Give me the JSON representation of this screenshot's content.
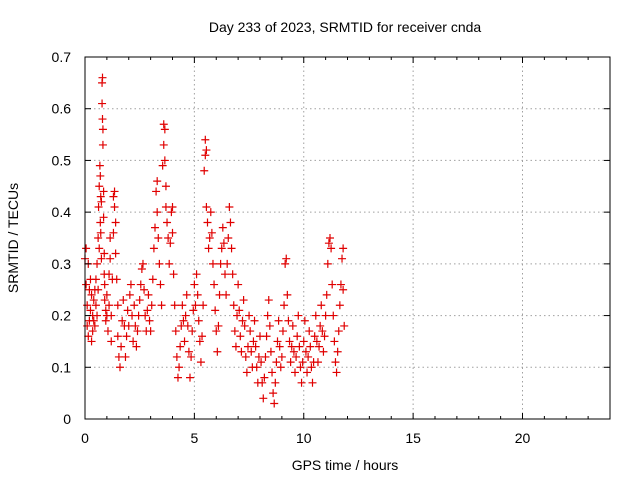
{
  "chart_data": {
    "type": "scatter",
    "title": "Day 233 of 2023, SRMTID for receiver cnda",
    "xlabel": "GPS time / hours",
    "ylabel": "SRMTID / TECUs",
    "xlim": [
      0,
      24
    ],
    "ylim": [
      0,
      0.7
    ],
    "xticks": [
      0,
      5,
      10,
      15,
      20
    ],
    "yticks": [
      0,
      0.1,
      0.2,
      0.3,
      0.4,
      0.5,
      0.6,
      0.7
    ],
    "xtick_labels": [
      "0",
      "5",
      "10",
      "15",
      "20"
    ],
    "ytick_labels": [
      "0",
      "0.1",
      "0.2",
      "0.3",
      "0.4",
      "0.5",
      "0.6",
      "0.7"
    ],
    "grid": true,
    "marker": "+",
    "color": "#e00000",
    "series": [
      {
        "name": "cnda",
        "points": [
          [
            0.0,
            0.31
          ],
          [
            0.05,
            0.33
          ],
          [
            0.05,
            0.26
          ],
          [
            0.1,
            0.18
          ],
          [
            0.1,
            0.22
          ],
          [
            0.15,
            0.3
          ],
          [
            0.15,
            0.16
          ],
          [
            0.2,
            0.25
          ],
          [
            0.2,
            0.19
          ],
          [
            0.25,
            0.27
          ],
          [
            0.25,
            0.21
          ],
          [
            0.3,
            0.15
          ],
          [
            0.3,
            0.24
          ],
          [
            0.35,
            0.2
          ],
          [
            0.35,
            0.17
          ],
          [
            0.4,
            0.23
          ],
          [
            0.4,
            0.19
          ],
          [
            0.45,
            0.25
          ],
          [
            0.45,
            0.18
          ],
          [
            0.5,
            0.22
          ],
          [
            0.5,
            0.27
          ],
          [
            0.55,
            0.2
          ],
          [
            0.55,
            0.3
          ],
          [
            0.6,
            0.25
          ],
          [
            0.6,
            0.35
          ],
          [
            0.62,
            0.41
          ],
          [
            0.65,
            0.33
          ],
          [
            0.65,
            0.45
          ],
          [
            0.68,
            0.49
          ],
          [
            0.7,
            0.47
          ],
          [
            0.7,
            0.38
          ],
          [
            0.72,
            0.43
          ],
          [
            0.72,
            0.36
          ],
          [
            0.75,
            0.42
          ],
          [
            0.75,
            0.31
          ],
          [
            0.78,
            0.61
          ],
          [
            0.78,
            0.65
          ],
          [
            0.8,
            0.66
          ],
          [
            0.8,
            0.58
          ],
          [
            0.82,
            0.56
          ],
          [
            0.82,
            0.53
          ],
          [
            0.85,
            0.44
          ],
          [
            0.85,
            0.39
          ],
          [
            0.88,
            0.32
          ],
          [
            0.88,
            0.28
          ],
          [
            0.9,
            0.26
          ],
          [
            0.9,
            0.23
          ],
          [
            0.95,
            0.21
          ],
          [
            0.95,
            0.19
          ],
          [
            1.0,
            0.24
          ],
          [
            1.0,
            0.2
          ],
          [
            1.05,
            0.17
          ],
          [
            1.1,
            0.22
          ],
          [
            1.1,
            0.28
          ],
          [
            1.15,
            0.35
          ],
          [
            1.15,
            0.31
          ],
          [
            1.2,
            0.2
          ],
          [
            1.2,
            0.15
          ],
          [
            1.25,
            0.27
          ],
          [
            1.3,
            0.36
          ],
          [
            1.3,
            0.43
          ],
          [
            1.35,
            0.44
          ],
          [
            1.35,
            0.41
          ],
          [
            1.4,
            0.38
          ],
          [
            1.4,
            0.32
          ],
          [
            1.45,
            0.27
          ],
          [
            1.5,
            0.22
          ],
          [
            1.5,
            0.16
          ],
          [
            1.55,
            0.12
          ],
          [
            1.6,
            0.1
          ],
          [
            1.65,
            0.14
          ],
          [
            1.7,
            0.19
          ],
          [
            1.75,
            0.23
          ],
          [
            1.8,
            0.18
          ],
          [
            1.85,
            0.12
          ],
          [
            1.9,
            0.16
          ],
          [
            1.95,
            0.21
          ],
          [
            2.0,
            0.18
          ],
          [
            2.05,
            0.24
          ],
          [
            2.1,
            0.26
          ],
          [
            2.15,
            0.2
          ],
          [
            2.2,
            0.15
          ],
          [
            2.25,
            0.22
          ],
          [
            2.3,
            0.18
          ],
          [
            2.35,
            0.14
          ],
          [
            2.4,
            0.17
          ],
          [
            2.45,
            0.2
          ],
          [
            2.5,
            0.23
          ],
          [
            2.55,
            0.26
          ],
          [
            2.6,
            0.29
          ],
          [
            2.65,
            0.3
          ],
          [
            2.7,
            0.25
          ],
          [
            2.75,
            0.2
          ],
          [
            2.8,
            0.17
          ],
          [
            2.85,
            0.21
          ],
          [
            2.9,
            0.24
          ],
          [
            2.95,
            0.19
          ],
          [
            3.0,
            0.17
          ],
          [
            3.05,
            0.22
          ],
          [
            3.1,
            0.27
          ],
          [
            3.15,
            0.33
          ],
          [
            3.2,
            0.37
          ],
          [
            3.25,
            0.44
          ],
          [
            3.3,
            0.46
          ],
          [
            3.3,
            0.4
          ],
          [
            3.35,
            0.35
          ],
          [
            3.4,
            0.3
          ],
          [
            3.45,
            0.26
          ],
          [
            3.5,
            0.22
          ],
          [
            3.55,
            0.49
          ],
          [
            3.6,
            0.53
          ],
          [
            3.6,
            0.57
          ],
          [
            3.65,
            0.56
          ],
          [
            3.65,
            0.5
          ],
          [
            3.7,
            0.45
          ],
          [
            3.7,
            0.41
          ],
          [
            3.75,
            0.38
          ],
          [
            3.8,
            0.35
          ],
          [
            3.85,
            0.3
          ],
          [
            3.9,
            0.34
          ],
          [
            3.95,
            0.4
          ],
          [
            4.0,
            0.41
          ],
          [
            4.0,
            0.36
          ],
          [
            4.05,
            0.28
          ],
          [
            4.1,
            0.22
          ],
          [
            4.15,
            0.17
          ],
          [
            4.2,
            0.12
          ],
          [
            4.25,
            0.08
          ],
          [
            4.3,
            0.1
          ],
          [
            4.35,
            0.14
          ],
          [
            4.4,
            0.18
          ],
          [
            4.45,
            0.22
          ],
          [
            4.5,
            0.19
          ],
          [
            4.55,
            0.15
          ],
          [
            4.6,
            0.2
          ],
          [
            4.65,
            0.24
          ],
          [
            4.7,
            0.18
          ],
          [
            4.75,
            0.13
          ],
          [
            4.8,
            0.08
          ],
          [
            4.85,
            0.12
          ],
          [
            4.9,
            0.17
          ],
          [
            4.95,
            0.21
          ],
          [
            5.0,
            0.26
          ],
          [
            5.05,
            0.22
          ],
          [
            5.1,
            0.28
          ],
          [
            5.15,
            0.24
          ],
          [
            5.2,
            0.19
          ],
          [
            5.25,
            0.15
          ],
          [
            5.3,
            0.11
          ],
          [
            5.35,
            0.16
          ],
          [
            5.4,
            0.22
          ],
          [
            5.45,
            0.48
          ],
          [
            5.5,
            0.51
          ],
          [
            5.5,
            0.54
          ],
          [
            5.55,
            0.52
          ],
          [
            5.55,
            0.41
          ],
          [
            5.6,
            0.38
          ],
          [
            5.65,
            0.33
          ],
          [
            5.7,
            0.35
          ],
          [
            5.75,
            0.4
          ],
          [
            5.8,
            0.36
          ],
          [
            5.85,
            0.3
          ],
          [
            5.9,
            0.26
          ],
          [
            5.95,
            0.21
          ],
          [
            6.0,
            0.17
          ],
          [
            6.05,
            0.13
          ],
          [
            6.1,
            0.18
          ],
          [
            6.15,
            0.24
          ],
          [
            6.2,
            0.3
          ],
          [
            6.25,
            0.33
          ],
          [
            6.3,
            0.37
          ],
          [
            6.35,
            0.34
          ],
          [
            6.4,
            0.28
          ],
          [
            6.45,
            0.24
          ],
          [
            6.5,
            0.3
          ],
          [
            6.55,
            0.35
          ],
          [
            6.6,
            0.41
          ],
          [
            6.65,
            0.38
          ],
          [
            6.7,
            0.33
          ],
          [
            6.75,
            0.28
          ],
          [
            6.8,
            0.22
          ],
          [
            6.85,
            0.17
          ],
          [
            6.9,
            0.14
          ],
          [
            6.95,
            0.2
          ],
          [
            7.0,
            0.26
          ],
          [
            7.05,
            0.21
          ],
          [
            7.1,
            0.16
          ],
          [
            7.15,
            0.13
          ],
          [
            7.2,
            0.19
          ],
          [
            7.25,
            0.23
          ],
          [
            7.3,
            0.18
          ],
          [
            7.35,
            0.12
          ],
          [
            7.4,
            0.09
          ],
          [
            7.45,
            0.14
          ],
          [
            7.5,
            0.2
          ],
          [
            7.55,
            0.17
          ],
          [
            7.6,
            0.13
          ],
          [
            7.65,
            0.1
          ],
          [
            7.7,
            0.15
          ],
          [
            7.75,
            0.19
          ],
          [
            7.8,
            0.14
          ],
          [
            7.85,
            0.1
          ],
          [
            7.9,
            0.07
          ],
          [
            7.95,
            0.12
          ],
          [
            8.0,
            0.16
          ],
          [
            8.05,
            0.11
          ],
          [
            8.1,
            0.07
          ],
          [
            8.15,
            0.04
          ],
          [
            8.2,
            0.08
          ],
          [
            8.25,
            0.12
          ],
          [
            8.3,
            0.16
          ],
          [
            8.35,
            0.2
          ],
          [
            8.4,
            0.23
          ],
          [
            8.45,
            0.18
          ],
          [
            8.5,
            0.13
          ],
          [
            8.55,
            0.09
          ],
          [
            8.6,
            0.05
          ],
          [
            8.65,
            0.03
          ],
          [
            8.7,
            0.07
          ],
          [
            8.75,
            0.11
          ],
          [
            8.8,
            0.15
          ],
          [
            8.85,
            0.19
          ],
          [
            8.9,
            0.14
          ],
          [
            8.95,
            0.1
          ],
          [
            9.0,
            0.12
          ],
          [
            9.05,
            0.17
          ],
          [
            9.1,
            0.22
          ],
          [
            9.15,
            0.3
          ],
          [
            9.2,
            0.31
          ],
          [
            9.25,
            0.24
          ],
          [
            9.3,
            0.19
          ],
          [
            9.35,
            0.15
          ],
          [
            9.4,
            0.11
          ],
          [
            9.45,
            0.14
          ],
          [
            9.5,
            0.18
          ],
          [
            9.55,
            0.13
          ],
          [
            9.6,
            0.09
          ],
          [
            9.65,
            0.12
          ],
          [
            9.7,
            0.16
          ],
          [
            9.75,
            0.2
          ],
          [
            9.8,
            0.14
          ],
          [
            9.85,
            0.1
          ],
          [
            9.9,
            0.07
          ],
          [
            9.95,
            0.11
          ],
          [
            10.0,
            0.15
          ],
          [
            10.05,
            0.19
          ],
          [
            10.1,
            0.13
          ],
          [
            10.15,
            0.09
          ],
          [
            10.2,
            0.12
          ],
          [
            10.25,
            0.17
          ],
          [
            10.3,
            0.14
          ],
          [
            10.35,
            0.1
          ],
          [
            10.4,
            0.07
          ],
          [
            10.45,
            0.11
          ],
          [
            10.5,
            0.16
          ],
          [
            10.55,
            0.2
          ],
          [
            10.6,
            0.15
          ],
          [
            10.65,
            0.11
          ],
          [
            10.7,
            0.14
          ],
          [
            10.75,
            0.18
          ],
          [
            10.8,
            0.22
          ],
          [
            10.85,
            0.17
          ],
          [
            10.9,
            0.13
          ],
          [
            10.95,
            0.16
          ],
          [
            11.0,
            0.2
          ],
          [
            11.05,
            0.24
          ],
          [
            11.1,
            0.3
          ],
          [
            11.15,
            0.34
          ],
          [
            11.2,
            0.35
          ],
          [
            11.25,
            0.33
          ],
          [
            11.3,
            0.26
          ],
          [
            11.35,
            0.2
          ],
          [
            11.4,
            0.15
          ],
          [
            11.45,
            0.11
          ],
          [
            11.5,
            0.09
          ],
          [
            11.55,
            0.13
          ],
          [
            11.6,
            0.17
          ],
          [
            11.65,
            0.22
          ],
          [
            11.7,
            0.26
          ],
          [
            11.75,
            0.31
          ],
          [
            11.8,
            0.33
          ],
          [
            11.8,
            0.25
          ],
          [
            11.85,
            0.18
          ]
        ]
      }
    ]
  }
}
